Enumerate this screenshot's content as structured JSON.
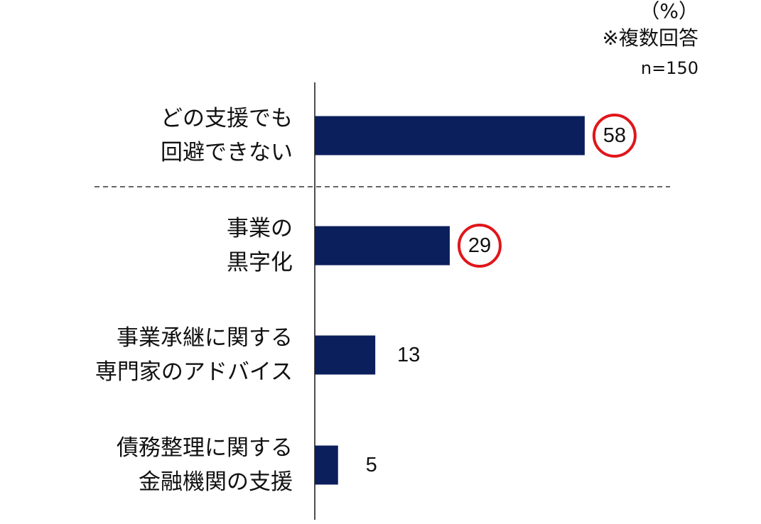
{
  "notes": {
    "unit": "（%）",
    "multiple_answers": "※複数回答",
    "sample_size": "n=150"
  },
  "colors": {
    "bar": "#0b1f5c",
    "highlight_circle": "#e0161b",
    "axis": "#222222",
    "separator": "#333333"
  },
  "chart_data": {
    "type": "bar",
    "orientation": "horizontal",
    "categories": [
      [
        "どの支援でも",
        "回避できない"
      ],
      [
        "事業の",
        "黒字化"
      ],
      [
        "事業承継に関する",
        "専門家のアドバイス"
      ],
      [
        "債務整理に関する",
        "金融機関の支援"
      ]
    ],
    "values": [
      58,
      29,
      13,
      5
    ],
    "highlighted": [
      true,
      true,
      false,
      false
    ],
    "unit": "%",
    "xlim": [
      0,
      100
    ],
    "grid": false,
    "separator_after_index": 0
  }
}
